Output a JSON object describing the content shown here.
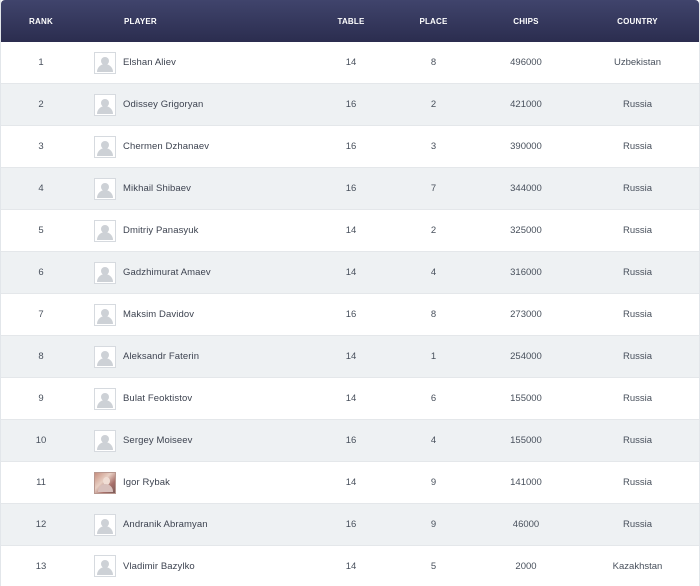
{
  "columns": {
    "rank": "RANK",
    "player": "PLAYER",
    "table": "TABLE",
    "place": "PLACE",
    "chips": "CHIPS",
    "country": "COUNTRY"
  },
  "rows": [
    {
      "rank": "1",
      "player": "Elshan Aliev",
      "table": "14",
      "place": "8",
      "chips": "496000",
      "country": "Uzbekistan",
      "avatar": "default-avatar-icon"
    },
    {
      "rank": "2",
      "player": "Odissey Grigoryan",
      "table": "16",
      "place": "2",
      "chips": "421000",
      "country": "Russia",
      "avatar": "default-avatar-icon"
    },
    {
      "rank": "3",
      "player": "Chermen Dzhanaev",
      "table": "16",
      "place": "3",
      "chips": "390000",
      "country": "Russia",
      "avatar": "default-avatar-icon"
    },
    {
      "rank": "4",
      "player": "Mikhail Shibaev",
      "table": "16",
      "place": "7",
      "chips": "344000",
      "country": "Russia",
      "avatar": "default-avatar-icon"
    },
    {
      "rank": "5",
      "player": "Dmitriy Panasyuk",
      "table": "14",
      "place": "2",
      "chips": "325000",
      "country": "Russia",
      "avatar": "default-avatar-icon"
    },
    {
      "rank": "6",
      "player": "Gadzhimurat Amaev",
      "table": "14",
      "place": "4",
      "chips": "316000",
      "country": "Russia",
      "avatar": "default-avatar-icon"
    },
    {
      "rank": "7",
      "player": "Maksim Davidov",
      "table": "16",
      "place": "8",
      "chips": "273000",
      "country": "Russia",
      "avatar": "default-avatar-icon"
    },
    {
      "rank": "8",
      "player": "Aleksandr Faterin",
      "table": "14",
      "place": "1",
      "chips": "254000",
      "country": "Russia",
      "avatar": "default-avatar-icon"
    },
    {
      "rank": "9",
      "player": "Bulat Feoktistov",
      "table": "14",
      "place": "6",
      "chips": "155000",
      "country": "Russia",
      "avatar": "default-avatar-icon"
    },
    {
      "rank": "10",
      "player": "Sergey Moiseev",
      "table": "16",
      "place": "4",
      "chips": "155000",
      "country": "Russia",
      "avatar": "default-avatar-icon"
    },
    {
      "rank": "11",
      "player": "Igor Rybak",
      "table": "14",
      "place": "9",
      "chips": "141000",
      "country": "Russia",
      "avatar": "player-photo-icon"
    },
    {
      "rank": "12",
      "player": "Andranik Abramyan",
      "table": "16",
      "place": "9",
      "chips": "46000",
      "country": "Russia",
      "avatar": "default-avatar-icon"
    },
    {
      "rank": "13",
      "player": "Vladimir Bazylko",
      "table": "14",
      "place": "5",
      "chips": "2000",
      "country": "Kazakhstan",
      "avatar": "default-avatar-icon"
    }
  ],
  "colors": {
    "header_top": "#40446c",
    "header_bottom": "#2b2d4f",
    "row_alt": "#eef1f3",
    "text": "#48505c"
  }
}
